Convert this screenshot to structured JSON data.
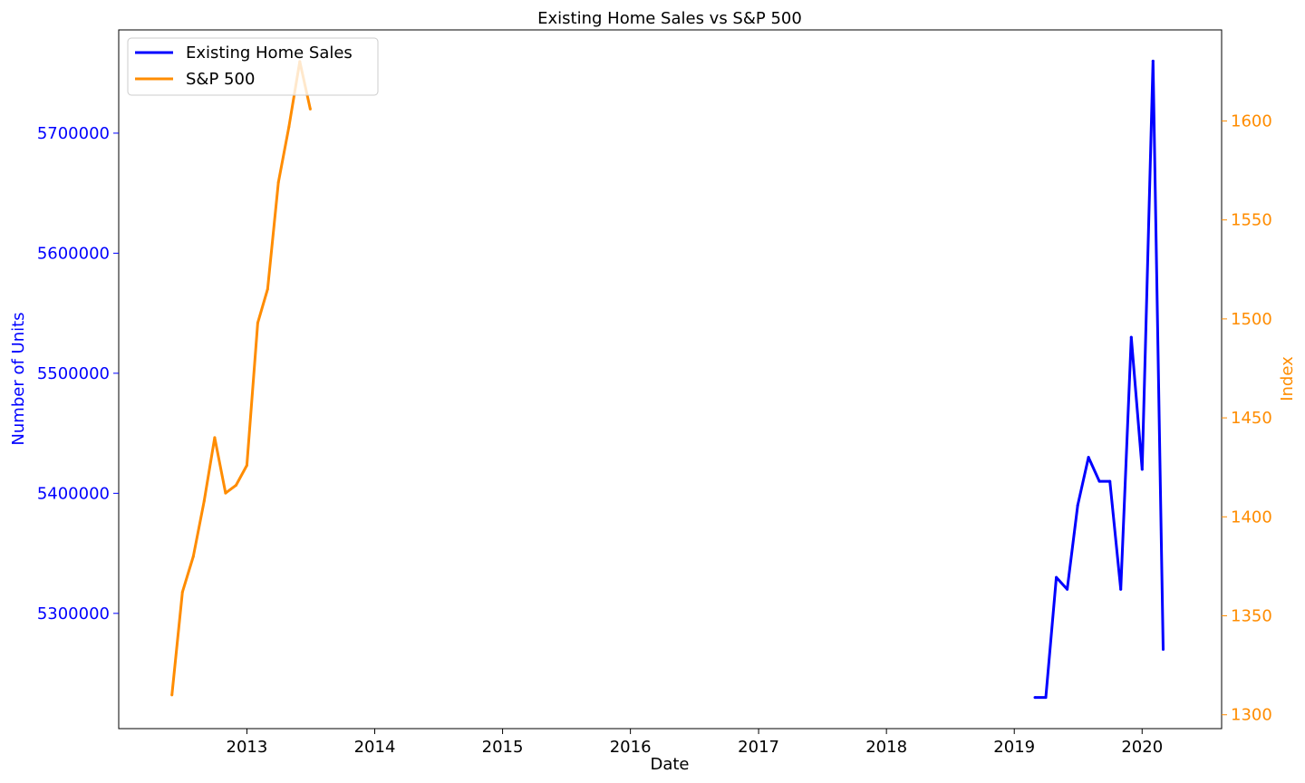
{
  "chart_data": {
    "type": "line",
    "title": "Existing Home Sales vs S&P 500",
    "xlabel": "Date",
    "ylabel_left": "Number of Units",
    "ylabel_right": "Index",
    "grid": false,
    "legend_position": "top-left",
    "xlim": [
      "2012-01-01",
      "2020-08-15"
    ],
    "x_ticks": [
      "2013",
      "2014",
      "2015",
      "2016",
      "2017",
      "2018",
      "2019",
      "2020"
    ],
    "ylim_left": [
      5204000,
      5786000
    ],
    "y_ticks_left": [
      "5300000",
      "5400000",
      "5500000",
      "5600000",
      "5700000"
    ],
    "ylim_right": [
      1293,
      1646
    ],
    "y_ticks_right": [
      "1300",
      "1350",
      "1400",
      "1450",
      "1500",
      "1550",
      "1600"
    ],
    "series": [
      {
        "name": "Existing Home Sales",
        "axis": "left",
        "color": "#0000ff",
        "x": [
          "2019-03-01",
          "2019-04-01",
          "2019-05-01",
          "2019-06-01",
          "2019-07-01",
          "2019-08-01",
          "2019-09-01",
          "2019-10-01",
          "2019-11-01",
          "2019-12-01",
          "2020-01-01",
          "2020-02-01",
          "2020-03-01"
        ],
        "y": [
          5230000,
          5230000,
          5330000,
          5320000,
          5390000,
          5430000,
          5410000,
          5410000,
          5320000,
          5530000,
          5420000,
          5760000,
          5270000
        ]
      },
      {
        "name": "S&P 500",
        "axis": "right",
        "color": "#ff8c00",
        "x": [
          "2012-06-01",
          "2012-07-01",
          "2012-08-01",
          "2012-09-01",
          "2012-10-01",
          "2012-11-01",
          "2012-12-01",
          "2013-01-01",
          "2013-02-01",
          "2013-03-01",
          "2013-04-01",
          "2013-05-01",
          "2013-06-01",
          "2013-07-01"
        ],
        "y": [
          1310,
          1362,
          1380,
          1408,
          1440,
          1412,
          1416,
          1426,
          1498,
          1515,
          1569,
          1597,
          1630,
          1606
        ]
      }
    ]
  }
}
